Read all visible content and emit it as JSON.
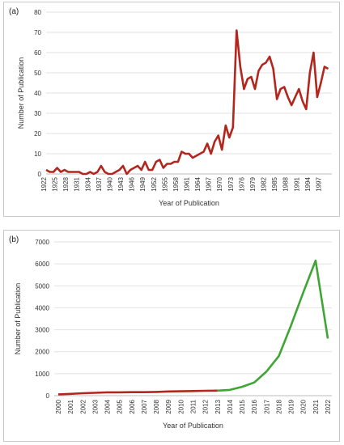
{
  "chart_data": [
    {
      "panel_label": "(a)",
      "type": "line",
      "xlabel": "Year of Publication",
      "ylabel": "Number of Publication",
      "ylim": [
        0,
        80
      ],
      "yticks": [
        0,
        10,
        20,
        30,
        40,
        50,
        60,
        70,
        80
      ],
      "xlim": [
        1922,
        2000
      ],
      "xticks": [
        1922,
        1925,
        1928,
        1931,
        1934,
        1937,
        1940,
        1943,
        1946,
        1949,
        1952,
        1955,
        1958,
        1961,
        1964,
        1967,
        1970,
        1973,
        1976,
        1979,
        1982,
        1985,
        1988,
        1991,
        1994,
        1997
      ],
      "grid": true,
      "color": "#b3261e",
      "series": [
        {
          "x": [
            1922,
            1923,
            1924,
            1925,
            1926,
            1927,
            1928,
            1929,
            1930,
            1931,
            1932,
            1933,
            1934,
            1935,
            1936,
            1937,
            1938,
            1939,
            1940,
            1941,
            1942,
            1943,
            1944,
            1945,
            1946,
            1947,
            1948,
            1949,
            1950,
            1951,
            1952,
            1953,
            1954,
            1955,
            1956,
            1957,
            1958,
            1959,
            1960,
            1961,
            1962,
            1963,
            1964,
            1965,
            1966,
            1967,
            1968,
            1969,
            1970,
            1971,
            1972,
            1973,
            1974,
            1975,
            1976,
            1977,
            1978,
            1979,
            1980,
            1981,
            1982,
            1983,
            1984,
            1985,
            1986,
            1987,
            1988,
            1989,
            1990,
            1991,
            1992,
            1993,
            1994,
            1995,
            1996,
            1997,
            1998,
            1999
          ],
          "values": [
            2,
            1,
            1,
            3,
            1,
            2,
            1,
            1,
            1,
            1,
            0,
            0,
            1,
            0,
            1,
            4,
            1,
            0,
            0,
            1,
            2,
            4,
            0,
            2,
            3,
            4,
            2,
            6,
            2,
            2,
            6,
            7,
            3,
            5,
            5,
            6,
            6,
            11,
            10,
            10,
            8,
            9,
            10,
            11,
            15,
            10,
            16,
            19,
            12,
            24,
            18,
            23,
            71,
            53,
            42,
            47,
            48,
            42,
            51,
            54,
            55,
            58,
            52,
            37,
            42,
            43,
            38,
            34,
            38,
            42,
            36,
            32,
            50,
            60,
            38,
            45,
            53,
            52
          ]
        }
      ]
    },
    {
      "panel_label": "(b)",
      "type": "line",
      "xlabel": "Year of Publication",
      "ylabel": "Number of Publication",
      "ylim": [
        0,
        7000
      ],
      "yticks": [
        0,
        1000,
        2000,
        3000,
        4000,
        5000,
        6000,
        7000
      ],
      "categories": [
        "2000",
        "2001",
        "2002",
        "2003",
        "2004",
        "2005",
        "2006",
        "2007",
        "2008",
        "2009",
        "2010",
        "2011",
        "2012",
        "2013",
        "2014",
        "2015",
        "2016",
        "2017",
        "2018",
        "2019",
        "2020",
        "2021",
        "2022"
      ],
      "grid": true,
      "split_index": 13,
      "color_before": "#b3261e",
      "color_after": "#3fa535",
      "series": [
        {
          "values": [
            60,
            80,
            110,
            130,
            150,
            150,
            160,
            160,
            170,
            190,
            200,
            210,
            220,
            230,
            260,
            400,
            600,
            1100,
            1800,
            3200,
            4700,
            6150,
            2600
          ]
        }
      ]
    }
  ]
}
